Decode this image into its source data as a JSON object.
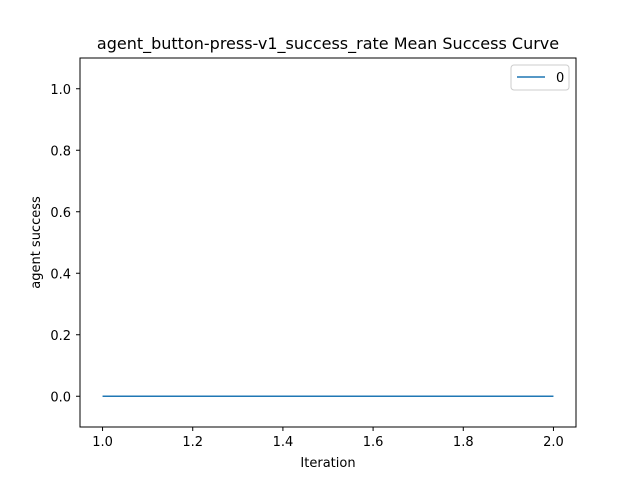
{
  "chart_data": {
    "type": "line",
    "title": "agent_button-press-v1_success_rate Mean Success Curve",
    "xlabel": "Iteration",
    "ylabel": "agent success",
    "xlim": [
      0.95,
      2.05
    ],
    "ylim": [
      -0.1,
      1.1
    ],
    "xticks": [
      1.0,
      1.2,
      1.4,
      1.6,
      1.8,
      2.0
    ],
    "xtick_labels": [
      "1.0",
      "1.2",
      "1.4",
      "1.6",
      "1.8",
      "2.0"
    ],
    "yticks": [
      0.0,
      0.2,
      0.4,
      0.6,
      0.8,
      1.0
    ],
    "ytick_labels": [
      "0.0",
      "0.2",
      "0.4",
      "0.6",
      "0.8",
      "1.0"
    ],
    "grid": false,
    "legend_position": "top-right",
    "series": [
      {
        "name": "0",
        "color": "#1f77b4",
        "x": [
          1.0,
          2.0
        ],
        "y": [
          0.0,
          0.0
        ]
      }
    ]
  }
}
